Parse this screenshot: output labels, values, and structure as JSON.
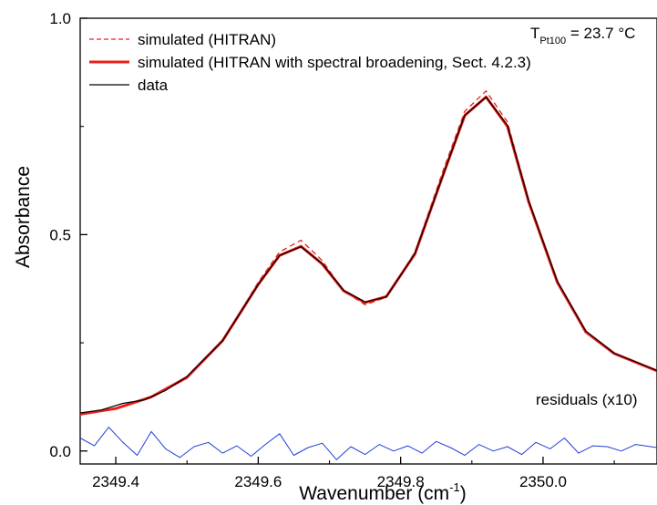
{
  "chart_data": {
    "type": "line",
    "xlabel": "Wavenumber (cm",
    "xlabel_sup": "-1",
    "xlabel_close": ")",
    "ylabel": "Absorbance",
    "xlim": [
      2349.35,
      2350.16
    ],
    "ylim": [
      -0.03,
      1.0
    ],
    "xticks": [
      2349.4,
      2349.6,
      2349.8,
      2350.0
    ],
    "xtick_labels": [
      "2349.4",
      "2349.6",
      "2349.8",
      "2350.0"
    ],
    "yticks": [
      0.0,
      0.5,
      1.0
    ],
    "ytick_labels": [
      "0.0",
      "0.5",
      "1.0"
    ],
    "legend_position": "top-left",
    "annotation": {
      "T": "T",
      "sub": "Pt100",
      "rest": " = 23.7 °C"
    },
    "residuals_label": "residuals (x10)",
    "series": [
      {
        "name": "simulated (HITRAN)",
        "color": "#e8201c",
        "style": "dashed",
        "x": [
          2349.35,
          2349.4,
          2349.45,
          2349.5,
          2349.55,
          2349.6,
          2349.63,
          2349.66,
          2349.69,
          2349.72,
          2349.75,
          2349.78,
          2349.82,
          2349.86,
          2349.89,
          2349.92,
          2349.95,
          2349.98,
          2350.02,
          2350.06,
          2350.1,
          2350.16
        ],
        "y": [
          0.085,
          0.098,
          0.125,
          0.17,
          0.255,
          0.39,
          0.46,
          0.487,
          0.44,
          0.37,
          0.338,
          0.355,
          0.46,
          0.65,
          0.785,
          0.832,
          0.76,
          0.58,
          0.39,
          0.275,
          0.225,
          0.185
        ]
      },
      {
        "name": "simulated (HITRAN with spectral broadening, Sect. 4.2.3)",
        "color": "#e8201c",
        "style": "solid",
        "x": [
          2349.35,
          2349.4,
          2349.45,
          2349.5,
          2349.55,
          2349.6,
          2349.63,
          2349.66,
          2349.69,
          2349.72,
          2349.75,
          2349.78,
          2349.82,
          2349.86,
          2349.89,
          2349.92,
          2349.95,
          2349.98,
          2350.02,
          2350.06,
          2350.1,
          2350.16
        ],
        "y": [
          0.085,
          0.098,
          0.125,
          0.17,
          0.255,
          0.385,
          0.452,
          0.473,
          0.432,
          0.37,
          0.343,
          0.357,
          0.455,
          0.64,
          0.775,
          0.818,
          0.75,
          0.575,
          0.39,
          0.275,
          0.225,
          0.185
        ]
      },
      {
        "name": "data",
        "color": "#000000",
        "style": "solid",
        "x": [
          2349.35,
          2349.38,
          2349.41,
          2349.44,
          2349.47,
          2349.5,
          2349.55,
          2349.6,
          2349.63,
          2349.66,
          2349.69,
          2349.72,
          2349.75,
          2349.78,
          2349.82,
          2349.86,
          2349.89,
          2349.92,
          2349.95,
          2349.98,
          2350.02,
          2350.06,
          2350.1,
          2350.16
        ],
        "y": [
          0.088,
          0.095,
          0.11,
          0.118,
          0.14,
          0.172,
          0.255,
          0.385,
          0.452,
          0.472,
          0.433,
          0.371,
          0.344,
          0.356,
          0.456,
          0.64,
          0.776,
          0.818,
          0.752,
          0.577,
          0.392,
          0.277,
          0.226,
          0.186
        ]
      },
      {
        "name": "residuals (x10)",
        "color": "#1f3fd8",
        "style": "solid",
        "x": [
          2349.35,
          2349.37,
          2349.39,
          2349.41,
          2349.43,
          2349.45,
          2349.47,
          2349.49,
          2349.51,
          2349.53,
          2349.55,
          2349.57,
          2349.59,
          2349.61,
          2349.63,
          2349.65,
          2349.67,
          2349.69,
          2349.71,
          2349.73,
          2349.75,
          2349.77,
          2349.79,
          2349.81,
          2349.83,
          2349.85,
          2349.87,
          2349.89,
          2349.91,
          2349.93,
          2349.95,
          2349.97,
          2349.99,
          2350.01,
          2350.03,
          2350.05,
          2350.07,
          2350.09,
          2350.11,
          2350.13,
          2350.16
        ],
        "y": [
          0.03,
          0.012,
          0.055,
          0.02,
          -0.01,
          0.045,
          0.005,
          -0.015,
          0.01,
          0.02,
          -0.005,
          0.012,
          -0.012,
          0.015,
          0.04,
          -0.01,
          0.008,
          0.018,
          -0.02,
          0.01,
          -0.008,
          0.015,
          0.0,
          0.012,
          -0.005,
          0.022,
          0.008,
          -0.01,
          0.015,
          0.0,
          0.01,
          -0.008,
          0.02,
          0.005,
          0.03,
          -0.005,
          0.012,
          0.01,
          0.0,
          0.015,
          0.008
        ]
      }
    ]
  }
}
